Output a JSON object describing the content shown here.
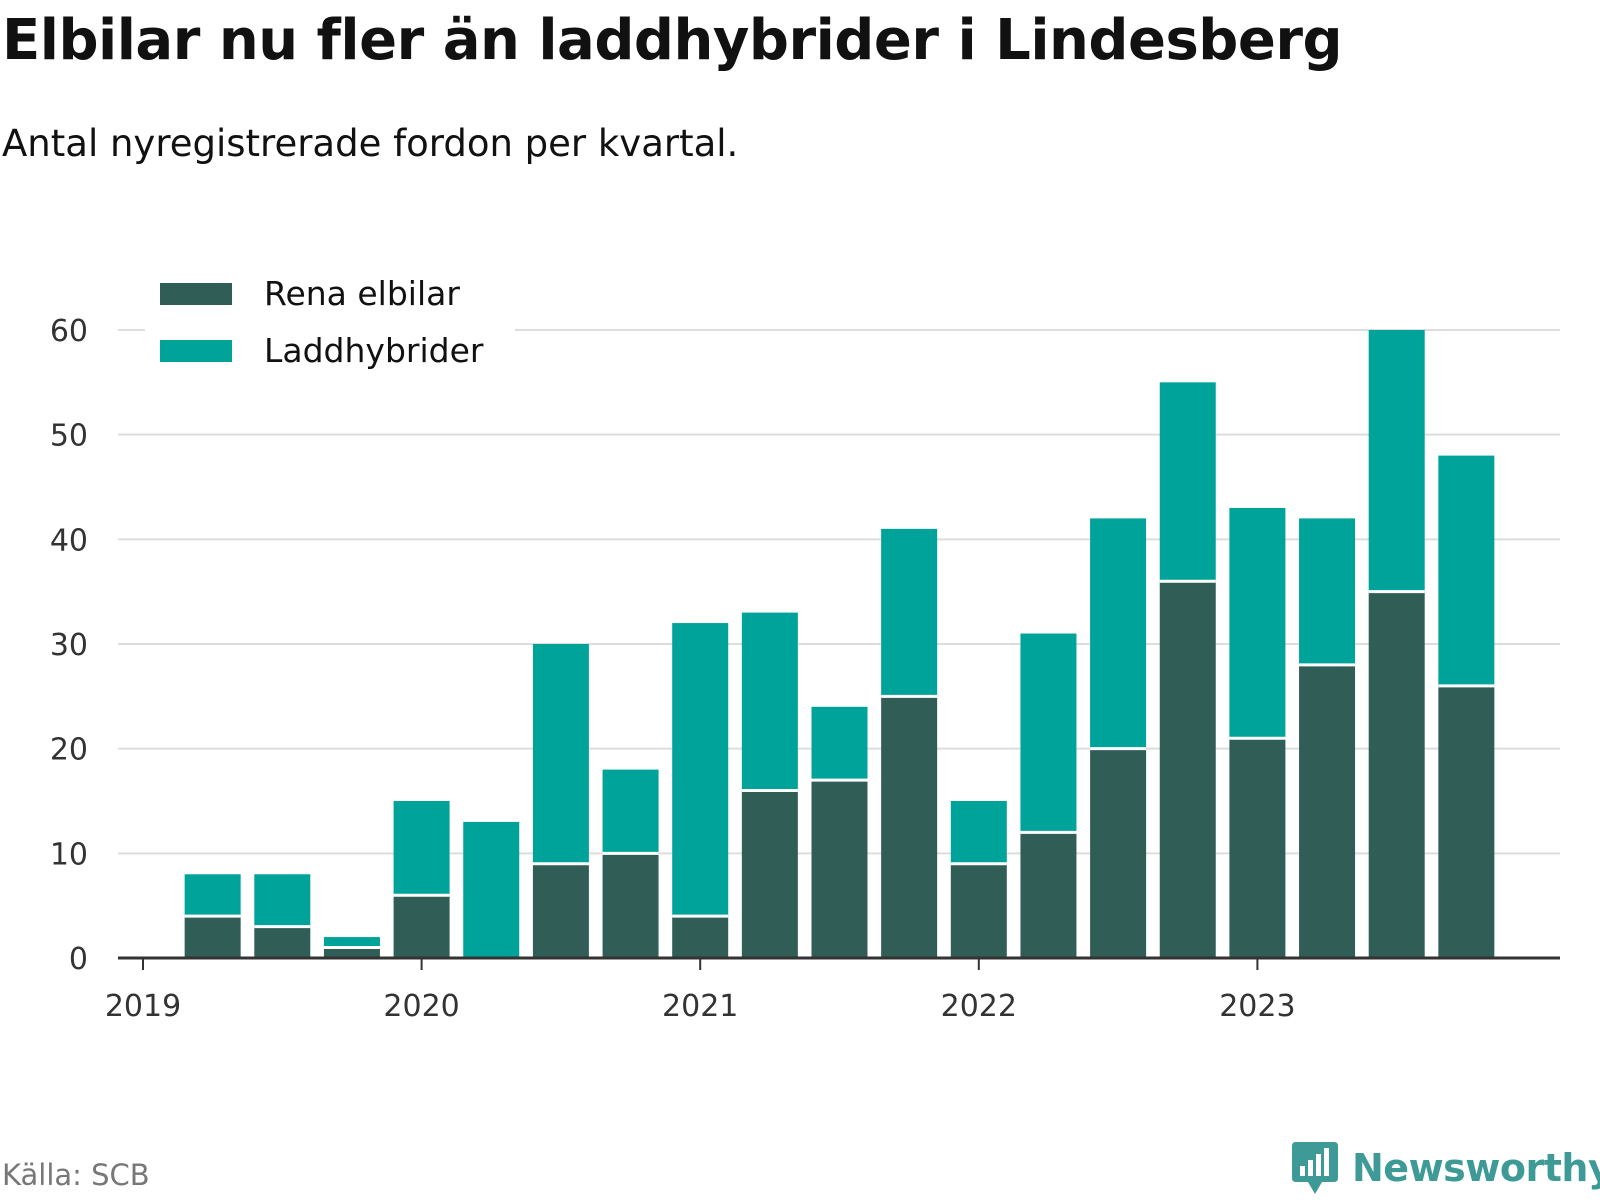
{
  "title": "Elbilar nu fler än laddhybrider i Lindesberg",
  "subtitle": "Antal nyregistrerade fordon per kvartal.",
  "source": "Källa: SCB",
  "brand": "Newsworthy",
  "colors": {
    "electric": "#305e57",
    "hybrid": "#00a39a",
    "grid": "#dddddd",
    "axis": "#333333",
    "brand": "#3d9a96"
  },
  "chart_data": {
    "type": "bar",
    "stacked": true,
    "title": "Elbilar nu fler än laddhybrider i Lindesberg",
    "subtitle": "Antal nyregistrerade fordon per kvartal.",
    "xlabel": "",
    "ylabel": "",
    "ylim": [
      0,
      60
    ],
    "yticks": [
      0,
      10,
      20,
      30,
      40,
      50,
      60
    ],
    "grid": true,
    "legend_position": "top-left",
    "x_range": [
      2019.0,
      2024.0
    ],
    "x_ticks": [
      "2019",
      "2020",
      "2021",
      "2022",
      "2023"
    ],
    "categories": [
      "2019 Q2",
      "2019 Q3",
      "2019 Q4",
      "2020 Q1",
      "2020 Q2",
      "2020 Q3",
      "2020 Q4",
      "2021 Q1",
      "2021 Q2",
      "2021 Q3",
      "2021 Q4",
      "2022 Q1",
      "2022 Q2",
      "2022 Q3",
      "2022 Q4",
      "2023 Q1",
      "2023 Q2",
      "2023 Q3",
      "2023 Q4"
    ],
    "x": [
      2019.25,
      2019.5,
      2019.75,
      2020.0,
      2020.25,
      2020.5,
      2020.75,
      2021.0,
      2021.25,
      2021.5,
      2021.75,
      2022.0,
      2022.25,
      2022.5,
      2022.75,
      2023.0,
      2023.25,
      2023.5,
      2023.75
    ],
    "series": [
      {
        "name": "Rena elbilar",
        "values": [
          4,
          3,
          1,
          6,
          0,
          9,
          10,
          4,
          16,
          17,
          25,
          9,
          12,
          20,
          36,
          21,
          28,
          35,
          26
        ]
      },
      {
        "name": "Laddhybrider",
        "values": [
          4,
          5,
          1,
          9,
          13,
          21,
          8,
          28,
          17,
          7,
          16,
          6,
          19,
          22,
          19,
          22,
          14,
          25,
          22
        ]
      }
    ]
  }
}
